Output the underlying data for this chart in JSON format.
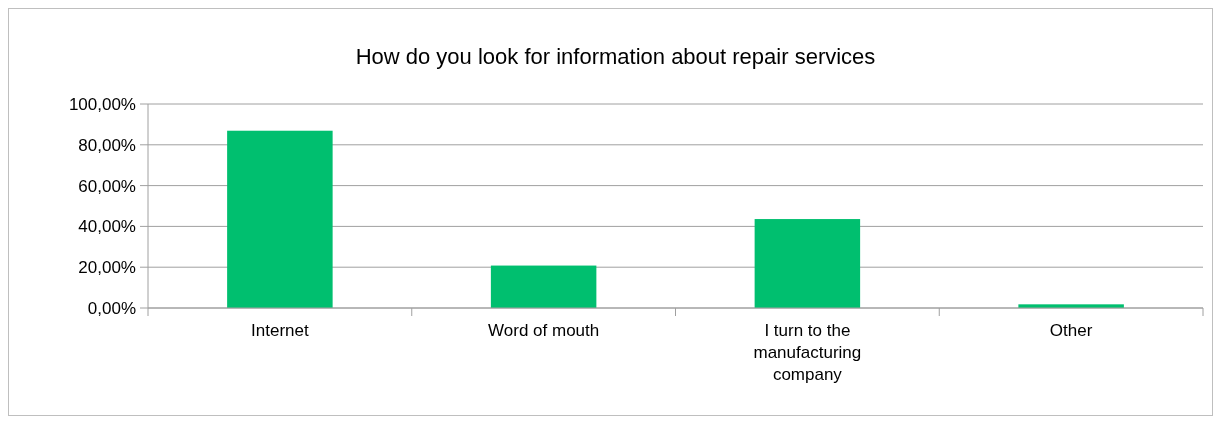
{
  "chart_data": {
    "type": "bar",
    "title": "How do you look for information about repair services",
    "categories": [
      "Internet",
      "Word of mouth",
      "I turn to the manufacturing company",
      "Other"
    ],
    "values": [
      86.9,
      20.8,
      43.6,
      1.8
    ],
    "color": "#00bf6f",
    "ylim": [
      0,
      100
    ],
    "yticks": [
      {
        "value": 0,
        "label": "0,00%"
      },
      {
        "value": 20,
        "label": "20,00%"
      },
      {
        "value": 40,
        "label": "40,00%"
      },
      {
        "value": 60,
        "label": "60,00%"
      },
      {
        "value": 80,
        "label": "80,00%"
      },
      {
        "value": 100,
        "label": "100,00%"
      }
    ],
    "grid": "y"
  }
}
